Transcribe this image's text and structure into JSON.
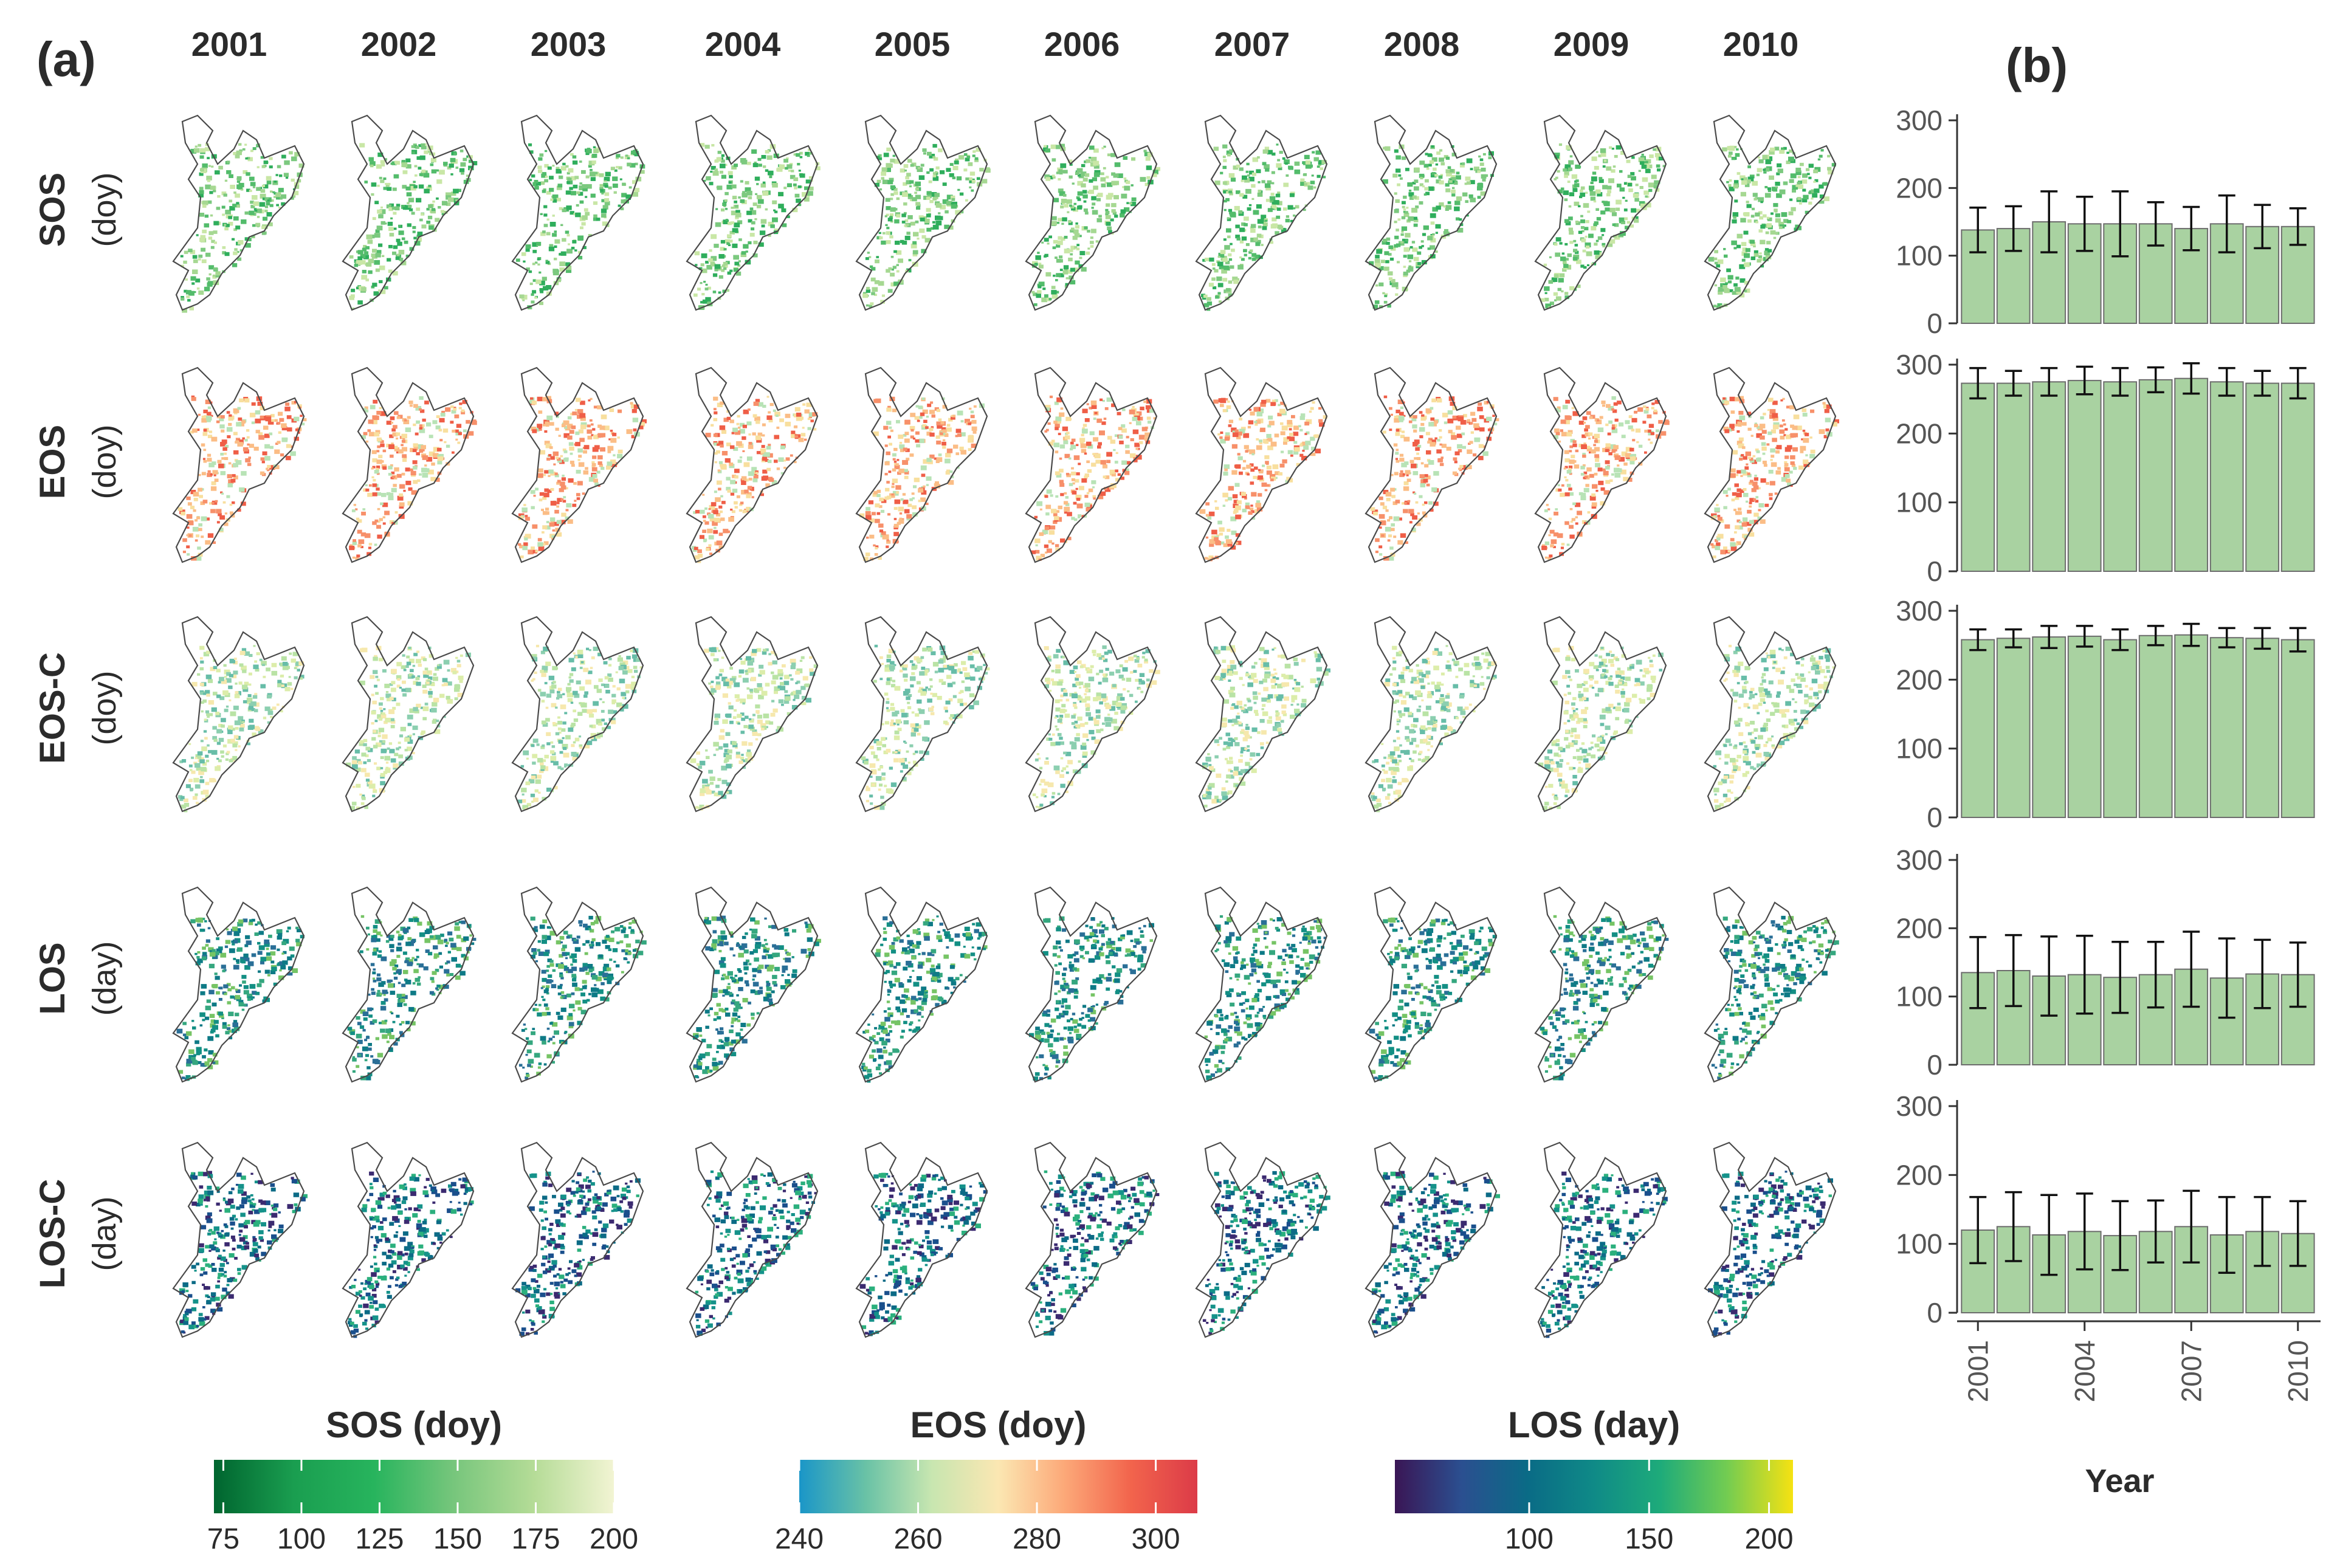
{
  "panel_a_label": "(a)",
  "panel_b_label": "(b)",
  "years": [
    "2001",
    "2002",
    "2003",
    "2004",
    "2005",
    "2006",
    "2007",
    "2008",
    "2009",
    "2010"
  ],
  "rows": [
    {
      "name": "SOS",
      "unit": "(doy)",
      "palette": "sos"
    },
    {
      "name": "EOS",
      "unit": "(doy)",
      "palette": "eos"
    },
    {
      "name": "EOS-C",
      "unit": "(doy)",
      "palette": "eosc"
    },
    {
      "name": "LOS",
      "unit": "(day)",
      "palette": "los"
    },
    {
      "name": "LOS-C",
      "unit": "(day)",
      "palette": "losc"
    }
  ],
  "colorbars": [
    {
      "title": "SOS (doy)",
      "ticks": [
        "75",
        "100",
        "125",
        "150",
        "175",
        "200"
      ],
      "tick_values": [
        75,
        100,
        125,
        150,
        175,
        200
      ],
      "range": [
        72,
        200
      ],
      "colors": [
        "#00652f",
        "#1a9e50",
        "#27b45d",
        "#77c67c",
        "#b5dc97",
        "#f2f4d3"
      ]
    },
    {
      "title": "EOS (doy)",
      "ticks": [
        "240",
        "260",
        "280",
        "300"
      ],
      "tick_values": [
        240,
        260,
        280,
        300
      ],
      "range": [
        240,
        307
      ],
      "colors": [
        "#1a96c8",
        "#69c2a6",
        "#c8e6b0",
        "#fbe7b2",
        "#fca878",
        "#f2644c",
        "#dc3b48"
      ]
    },
    {
      "title": "LOS (day)",
      "ticks": [
        "100",
        "150",
        "200"
      ],
      "tick_values": [
        100,
        150,
        200
      ],
      "range": [
        44,
        210
      ],
      "colors": [
        "#3a1655",
        "#2b4f90",
        "#0a6b86",
        "#0f8a87",
        "#1eab7a",
        "#72cc52",
        "#f6e212"
      ]
    }
  ],
  "chart_data": [
    {
      "type": "bar",
      "title": "SOS",
      "xlabel": "Year",
      "ylabel": "SOS (doy)",
      "categories": [
        "2001",
        "2002",
        "2003",
        "2004",
        "2005",
        "2006",
        "2007",
        "2008",
        "2009",
        "2010"
      ],
      "values": [
        138,
        140,
        150,
        147,
        147,
        147,
        140,
        147,
        143,
        143
      ],
      "error": [
        33,
        33,
        45,
        40,
        48,
        32,
        32,
        42,
        32,
        27
      ],
      "ylim": [
        0,
        300
      ],
      "yticks": [
        0,
        100,
        200,
        300
      ]
    },
    {
      "type": "bar",
      "title": "EOS",
      "xlabel": "Year",
      "ylabel": "EOS (doy)",
      "categories": [
        "2001",
        "2002",
        "2003",
        "2004",
        "2005",
        "2006",
        "2007",
        "2008",
        "2009",
        "2010"
      ],
      "values": [
        273,
        273,
        275,
        277,
        275,
        278,
        280,
        275,
        273,
        273
      ],
      "error": [
        22,
        18,
        20,
        20,
        20,
        18,
        22,
        20,
        18,
        22
      ],
      "ylim": [
        0,
        300
      ],
      "yticks": [
        0,
        100,
        200,
        300
      ]
    },
    {
      "type": "bar",
      "title": "EOS-C",
      "xlabel": "Year",
      "ylabel": "EOS-C (doy)",
      "categories": [
        "2001",
        "2002",
        "2003",
        "2004",
        "2005",
        "2006",
        "2007",
        "2008",
        "2009",
        "2010"
      ],
      "values": [
        258,
        260,
        262,
        263,
        258,
        264,
        265,
        261,
        260,
        258
      ],
      "error": [
        15,
        13,
        16,
        15,
        15,
        14,
        16,
        14,
        15,
        17
      ],
      "ylim": [
        0,
        300
      ],
      "yticks": [
        0,
        100,
        200,
        300
      ]
    },
    {
      "type": "bar",
      "title": "LOS",
      "xlabel": "Year",
      "ylabel": "LOS (day)",
      "categories": [
        "2001",
        "2002",
        "2003",
        "2004",
        "2005",
        "2006",
        "2007",
        "2008",
        "2009",
        "2010"
      ],
      "values": [
        135,
        138,
        130,
        132,
        128,
        132,
        140,
        127,
        133,
        132
      ],
      "error": [
        52,
        52,
        58,
        57,
        52,
        48,
        55,
        58,
        50,
        47
      ],
      "ylim": [
        0,
        300
      ],
      "yticks": [
        0,
        100,
        200,
        300
      ]
    },
    {
      "type": "bar",
      "title": "LOS-C",
      "xlabel": "Year",
      "ylabel": "LOS-C (day)",
      "categories": [
        "2001",
        "2002",
        "2003",
        "2004",
        "2005",
        "2006",
        "2007",
        "2008",
        "2009",
        "2010"
      ],
      "values": [
        120,
        125,
        113,
        118,
        112,
        118,
        125,
        113,
        118,
        115
      ],
      "error": [
        48,
        50,
        58,
        55,
        50,
        45,
        52,
        55,
        50,
        47
      ],
      "ylim": [
        0,
        300
      ],
      "yticks": [
        0,
        100,
        200,
        300
      ]
    }
  ],
  "bar_axis": {
    "xticks": [
      "2001",
      "2004",
      "2007",
      "2010"
    ],
    "xlabel": "Year"
  },
  "palettes": {
    "sos": [
      "#2fae5c",
      "#53bc6b",
      "#7cc97f",
      "#a6d892",
      "#c9e7a6"
    ],
    "eos": [
      "#b8e3b6",
      "#f8df9e",
      "#fbbd86",
      "#f7906a",
      "#ef5e47"
    ],
    "eosc": [
      "#8ccfb0",
      "#b9e3a5",
      "#dcedaa",
      "#f6e8ad",
      "#67bda8"
    ],
    "los": [
      "#0e7a86",
      "#138f84",
      "#2a6f97",
      "#35a77f",
      "#76c465"
    ],
    "losc": [
      "#0c6b86",
      "#1a4f8c",
      "#3b2a70",
      "#15928a",
      "#2bb07d"
    ]
  },
  "colors": {
    "bar_fill": "#a9d2a1",
    "bar_stroke": "#6d6d6d",
    "outline": "#4a4a4a",
    "axis": "#333333"
  }
}
